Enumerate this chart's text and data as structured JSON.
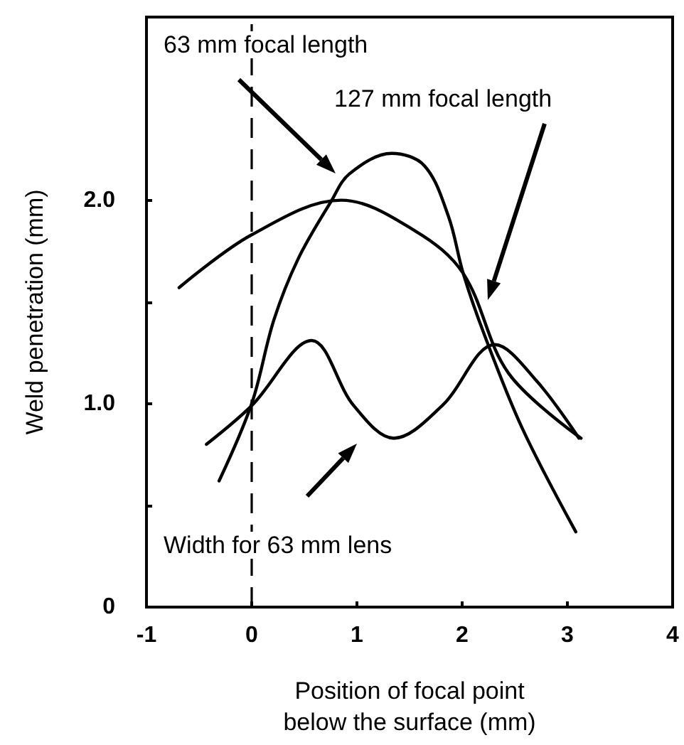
{
  "chart_data": {
    "type": "line",
    "xlabel": "Position of focal point below the surface (mm)",
    "ylabel": "Weld penetration (mm)",
    "xlim": [
      -1,
      4
    ],
    "xticks": [
      -1,
      0,
      1,
      2,
      3,
      4
    ],
    "ylim": [
      0,
      2.9
    ],
    "yticks": [
      {
        "value": 0,
        "label": "0"
      },
      {
        "value": 0.5,
        "label": null
      },
      {
        "value": 1,
        "label": "1.0"
      },
      {
        "value": 1.5,
        "label": null
      },
      {
        "value": 2,
        "label": "2.0"
      }
    ],
    "series": [
      {
        "color": "#000000",
        "x": [
          -0.31,
          0,
          0.21,
          0.44,
          0.75,
          0.93,
          1.33,
          1.64,
          1.87,
          2.01,
          2.21,
          2.57,
          3.08
        ],
        "values": [
          0.62,
          1.0,
          1.41,
          1.71,
          1.99,
          2.13,
          2.23,
          2.17,
          1.92,
          1.64,
          1.34,
          0.88,
          0.37
        ]
      },
      {
        "color": "#000000",
        "x": [
          -0.69,
          0,
          0.85,
          1.55,
          2.01,
          2.44,
          3.13
        ],
        "values": [
          1.57,
          1.83,
          2.0,
          1.85,
          1.64,
          1.15,
          0.83
        ]
      },
      {
        "color": "#000000",
        "x": [
          -0.43,
          0,
          0.57,
          0.97,
          1.35,
          1.81,
          2.31,
          2.71,
          3.11
        ],
        "values": [
          0.8,
          0.99,
          1.31,
          0.99,
          0.83,
          0.99,
          1.29,
          1.11,
          0.83
        ]
      }
    ],
    "ref_lines": [
      {
        "axis": "x",
        "value": 0,
        "line_style": "dashed",
        "color": "#000000"
      }
    ],
    "annotations": [
      "63 mm focal length",
      "127 mm focal length",
      "Width for 63 mm lens"
    ],
    "marker": "none",
    "line_style": "solid",
    "grid": false
  }
}
